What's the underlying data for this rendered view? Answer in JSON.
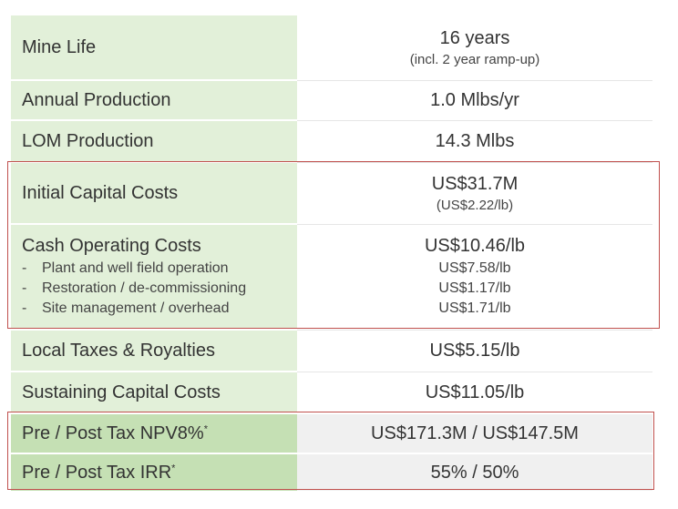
{
  "rows": [
    {
      "label": "Mine Life",
      "value": "16 years",
      "sub": "(incl. 2 year ramp-up)"
    },
    {
      "label": "Annual Production",
      "value": "1.0 Mlbs/yr"
    },
    {
      "label": "LOM Production",
      "value": "14.3 Mlbs"
    },
    {
      "label": "Initial Capital Costs",
      "value": "US$31.7M",
      "sub": "(US$2.22/lb)"
    },
    {
      "label": "Cash Operating Costs",
      "value": "US$10.46/lb",
      "items": [
        {
          "label": "Plant and well field operation",
          "value": "US$7.58/lb"
        },
        {
          "label": "Restoration / de-commissioning",
          "value": "US$1.17/lb"
        },
        {
          "label": "Site management / overhead",
          "value": "US$1.71/lb"
        }
      ]
    },
    {
      "label": "Local Taxes & Royalties",
      "value": "US$5.15/lb"
    },
    {
      "label": "Sustaining Capital Costs",
      "value": "US$11.05/lb"
    },
    {
      "label": "Pre / Post Tax NPV8%",
      "marker": "*",
      "value": "US$171.3M / US$147.5M"
    },
    {
      "label": "Pre / Post Tax IRR",
      "marker": "*",
      "value": "55% / 50%"
    }
  ],
  "bullet_dash": "-",
  "colors": {
    "label_bg": "#e2f0d9",
    "label_bg_dark": "#c5e0b4",
    "value_bg_dark": "#f0f0f0",
    "highlight_border": "#c0504d"
  }
}
